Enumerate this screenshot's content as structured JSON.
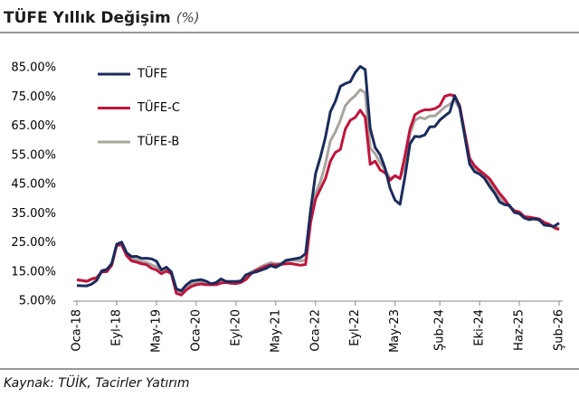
{
  "chart_data": {
    "type": "line",
    "title": "TÜFE Yıllık Değişim",
    "subtitle": "(%)",
    "source": "Kaynak: TÜİK, Tacirler Yatırım",
    "categories": [
      "Oca-18",
      null,
      null,
      null,
      null,
      null,
      null,
      null,
      "Eyl-18",
      null,
      null,
      null,
      null,
      null,
      null,
      null,
      "May-19",
      null,
      null,
      null,
      null,
      null,
      null,
      null,
      "Oca-20",
      null,
      null,
      null,
      null,
      null,
      null,
      null,
      "Eyl-20",
      null,
      null,
      null,
      null,
      null,
      null,
      null,
      "May-21",
      null,
      null,
      null,
      null,
      null,
      null,
      null,
      "Oca-22",
      null,
      null,
      null,
      null,
      null,
      null,
      null,
      "Eyl-22",
      null,
      null,
      null,
      null,
      null,
      null,
      null,
      "May-23",
      null,
      null,
      null,
      null,
      null,
      null,
      null,
      null,
      "Şub-24",
      null,
      null,
      null,
      null,
      null,
      null,
      null,
      "Eki-24",
      null,
      null,
      null,
      null,
      null,
      null,
      null,
      "Haz-25",
      null,
      null,
      null,
      null,
      null,
      null,
      null,
      "Şub-26"
    ],
    "series": [
      {
        "name": "TÜFE",
        "color": "#1b2b5c",
        "values": [
          10.35,
          10.26,
          10.23,
          10.85,
          12.15,
          15.39,
          15.85,
          17.9,
          24.52,
          25.24,
          21.62,
          20.3,
          20.35,
          19.67,
          19.71,
          19.5,
          18.71,
          15.72,
          16.65,
          15.01,
          9.26,
          8.55,
          10.56,
          11.84,
          12.15,
          12.37,
          11.86,
          10.94,
          11.39,
          12.62,
          11.76,
          11.77,
          11.75,
          11.89,
          14.03,
          14.6,
          14.97,
          15.61,
          16.19,
          17.14,
          16.59,
          17.53,
          18.95,
          19.25,
          19.58,
          19.89,
          21.31,
          36.08,
          48.69,
          54.44,
          61.14,
          69.97,
          73.5,
          78.62,
          79.6,
          80.21,
          83.45,
          85.51,
          84.39,
          64.27,
          57.68,
          55.18,
          50.51,
          43.68,
          39.59,
          38.21,
          47.83,
          58.94,
          61.53,
          61.36,
          61.98,
          64.77,
          64.86,
          67.07,
          68.5,
          69.8,
          75.45,
          71.6,
          61.78,
          51.97,
          49.38,
          48.58,
          47.09,
          44.38,
          42.12,
          39.05,
          38.1,
          37.86,
          35.41,
          35.05,
          33.52,
          32.95,
          33.29,
          32.87,
          31.07,
          30.89,
          30.65,
          31.8
        ]
      },
      {
        "name": "TÜFE-C",
        "color": "#c0143c",
        "values": [
          12.3,
          12.1,
          11.8,
          12.6,
          13.0,
          15.0,
          15.1,
          17.3,
          24.1,
          24.3,
          20.6,
          18.8,
          18.4,
          17.8,
          17.5,
          16.3,
          15.7,
          14.4,
          15.3,
          14.4,
          7.7,
          7.1,
          8.8,
          10.0,
          10.6,
          10.9,
          10.6,
          10.6,
          10.6,
          11.2,
          11.4,
          11.1,
          11.0,
          11.4,
          12.4,
          14.3,
          15.5,
          16.2,
          17.0,
          17.5,
          17.4,
          17.6,
          17.8,
          17.9,
          17.6,
          17.3,
          17.6,
          31.9,
          40.0,
          43.5,
          47.0,
          53.0,
          56.0,
          57.0,
          64.0,
          67.0,
          68.0,
          70.5,
          68.0,
          51.9,
          53.0,
          50.0,
          49.0,
          46.5,
          48.0,
          47.0,
          55.0,
          64.0,
          68.9,
          70.0,
          70.6,
          70.6,
          71.0,
          72.0,
          75.2,
          75.8,
          75.4,
          72.0,
          63.0,
          54.0,
          51.4,
          49.8,
          48.5,
          47.0,
          44.5,
          42.0,
          40.0,
          37.6,
          36.0,
          35.6,
          34.0,
          33.8,
          33.5,
          33.2,
          32.0,
          31.4,
          30.2,
          29.5
        ]
      },
      {
        "name": "TÜFE-B",
        "color": "#a9a49d",
        "values": [
          12.4,
          12.1,
          11.9,
          12.7,
          13.2,
          15.4,
          15.8,
          17.5,
          24.3,
          25.0,
          21.2,
          19.5,
          19.2,
          18.5,
          18.3,
          17.4,
          16.8,
          15.1,
          15.8,
          14.8,
          8.5,
          8.0,
          9.5,
          10.8,
          11.2,
          11.5,
          11.2,
          11.0,
          11.2,
          11.8,
          11.8,
          11.6,
          11.4,
          11.7,
          13.5,
          15.0,
          15.8,
          16.8,
          17.5,
          18.2,
          17.8,
          18.0,
          18.6,
          19.0,
          19.0,
          18.7,
          19.2,
          33.0,
          42.0,
          46.0,
          52.0,
          60.0,
          63.0,
          67.0,
          72.0,
          74.0,
          75.5,
          77.5,
          76.5,
          57.5,
          55.5,
          52.5,
          50.0,
          47.0,
          48.0,
          47.0,
          52.0,
          62.5,
          67.0,
          68.0,
          67.5,
          68.5,
          68.5,
          70.0,
          71.5,
          72.5,
          74.0,
          71.0,
          62.0,
          53.0,
          50.0,
          49.0,
          47.5,
          45.5,
          43.0,
          40.5,
          38.8,
          37.5,
          35.5,
          35.0,
          33.5,
          33.3,
          33.0,
          32.8,
          31.5,
          31.0,
          30.5,
          30.0
        ]
      }
    ],
    "ylim": [
      5,
      85
    ],
    "yticks": [
      {
        "value": 5,
        "label": "5.00%"
      },
      {
        "value": 15,
        "label": "15.00%"
      },
      {
        "value": 25,
        "label": "25.00%"
      },
      {
        "value": 35,
        "label": "35.00%"
      },
      {
        "value": 45,
        "label": "45.00%"
      },
      {
        "value": 55,
        "label": "55.00%"
      },
      {
        "value": 65,
        "label": "65.00%"
      },
      {
        "value": 75,
        "label": "75.00%"
      },
      {
        "value": 85,
        "label": "85.00%"
      }
    ],
    "grid": false,
    "legend": "top-left"
  }
}
